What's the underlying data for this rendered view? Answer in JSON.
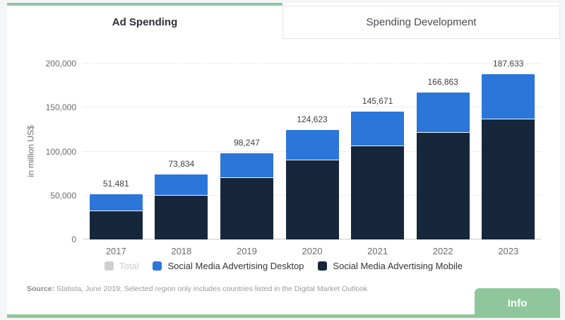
{
  "tabs": {
    "active": "Ad Spending",
    "inactive": "Spending Development"
  },
  "legend": {
    "items": [
      {
        "label": "Total",
        "color": "#cfcfcf",
        "disabled": true
      },
      {
        "label": "Social Media Advertising Desktop",
        "color": "#2b76d8",
        "disabled": false
      },
      {
        "label": "Social Media Advertising Mobile",
        "color": "#16273c",
        "disabled": false
      }
    ]
  },
  "source": {
    "prefix": "Source:",
    "text": " Statista, June 2019; Selected region only includes countries listed in the Digital Market Outlook"
  },
  "info_button_label": "Info",
  "colors": {
    "accent_green": "#8fc69c",
    "desktop_blue": "#2b76d8",
    "mobile_navy": "#16273c",
    "grid": "#e0e0e0",
    "axis": "#c9c9c9"
  },
  "chart_data": {
    "type": "bar",
    "stacked": true,
    "title": "Ad Spending",
    "ylabel": "in million US$",
    "xlabel": "",
    "ylim": [
      0,
      200000
    ],
    "yticks": [
      0,
      50000,
      100000,
      150000,
      200000
    ],
    "grid": "horizontal-dotted",
    "legend_position": "bottom",
    "categories": [
      "2017",
      "2018",
      "2019",
      "2020",
      "2021",
      "2022",
      "2023"
    ],
    "totals": [
      51481,
      73834,
      98247,
      124623,
      145671,
      166863,
      187633
    ],
    "total_labels": [
      "51,481",
      "73,834",
      "98,247",
      "124,623",
      "145,671",
      "166,863",
      "187,633"
    ],
    "series": [
      {
        "name": "Social Media Advertising Mobile",
        "color": "#16273c",
        "values": [
          33000,
          51000,
          70500,
          90500,
          106500,
          122500,
          137500
        ]
      },
      {
        "name": "Social Media Advertising Desktop",
        "color": "#2b76d8",
        "values": [
          18481,
          22834,
          27747,
          34123,
          39171,
          44363,
          50133
        ]
      }
    ]
  }
}
